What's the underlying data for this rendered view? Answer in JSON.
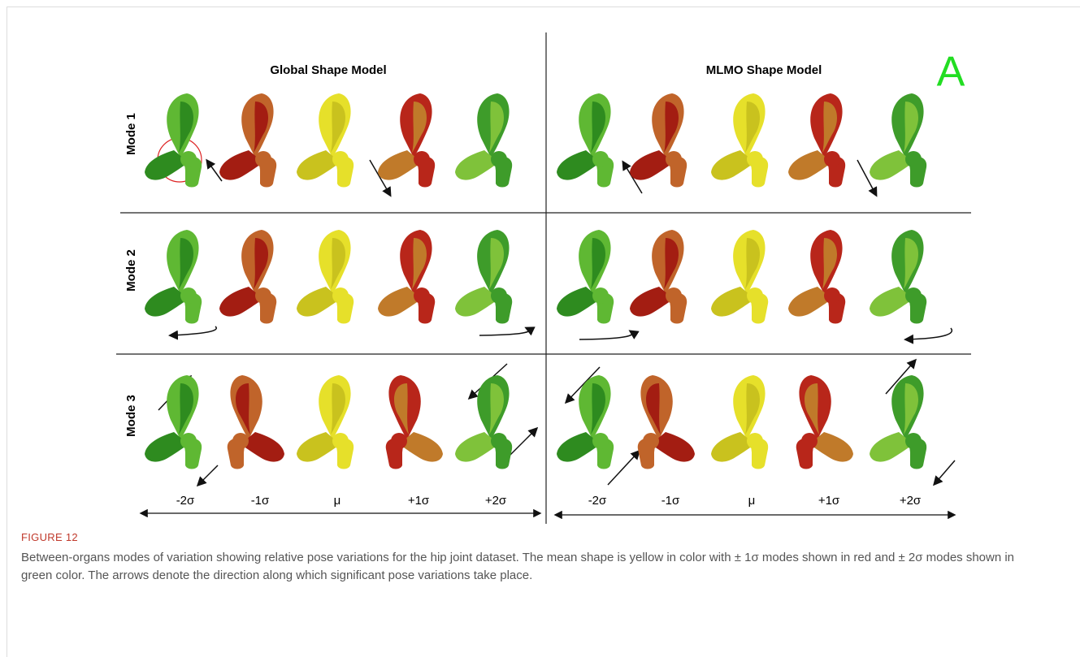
{
  "panels": [
    {
      "title": "Global Shape Model",
      "sigma_labels": [
        "-2σ",
        "-1σ",
        "μ",
        "+1σ",
        "+2σ"
      ]
    },
    {
      "title": "MLMO Shape Model",
      "tag": "A",
      "sigma_labels": [
        "-2σ",
        "-1σ",
        "μ",
        "+1σ",
        "+2σ"
      ]
    }
  ],
  "modes": [
    "Mode 1",
    "Mode 2",
    "Mode 3"
  ],
  "caption": {
    "label": "FIGURE 12",
    "text": "Between-organs modes of variation showing relative pose variations for the hip joint dataset. The mean shape is yellow in color with ± 1σ modes shown in red and ± 2σ modes shown in green color. The arrows denote the direction along which significant pose variations take place."
  }
}
